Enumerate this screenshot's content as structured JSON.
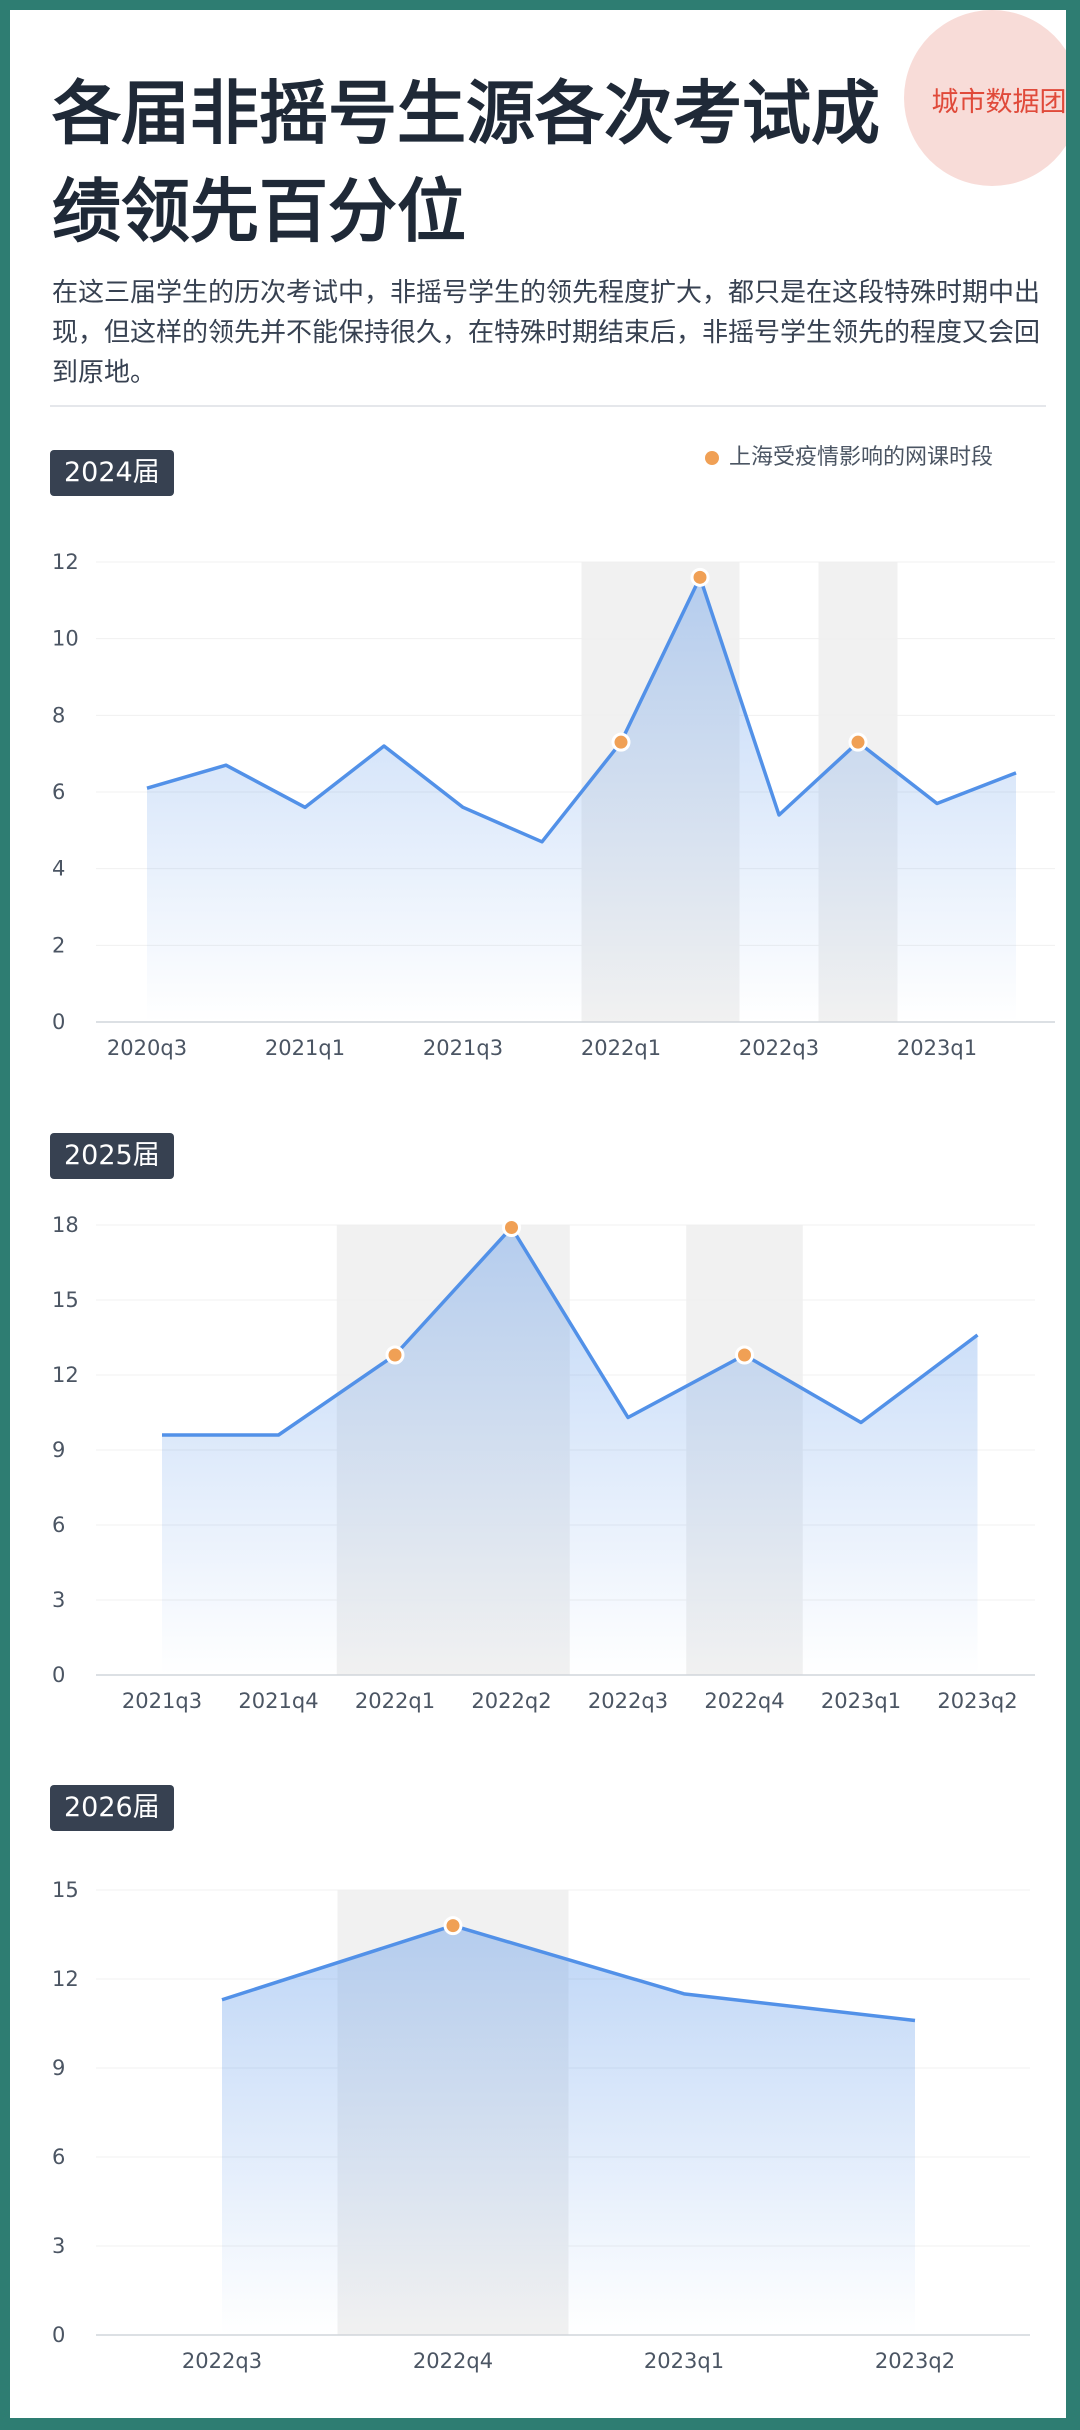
{
  "header": {
    "brand": "城市数据团",
    "title": "各届非摇号生源各次考试成绩领先百分位",
    "description": "在这三届学生的历次考试中，非摇号学生的领先程度扩大，都只是在这段特殊时期中出现，但这样的领先并不能保持很久，在特殊时期结束后，非摇号学生领先的程度又会回到原地。"
  },
  "legend": {
    "label": "上海受疫情影响的网课时段",
    "marker_color": "#f0a055"
  },
  "colors": {
    "line": "#5291e8",
    "highlight_band": "#f1f1f1",
    "marker": "#f0a055"
  },
  "chart_data": [
    {
      "type": "area",
      "cohort": "2024届",
      "x_ticks": [
        "2020q3",
        "2021q1",
        "2021q3",
        "2022q1",
        "2022q3",
        "2023q1"
      ],
      "values": [
        6.1,
        6.7,
        5.6,
        7.2,
        5.6,
        4.7,
        7.3,
        11.6,
        5.4,
        7.3,
        5.7,
        6.5
      ],
      "ylim": [
        0,
        12
      ],
      "y_ticks": [
        0,
        2,
        4,
        6,
        8,
        10,
        12
      ],
      "highlighted_points": [
        6,
        7,
        9
      ],
      "shaded_ranges": [
        [
          6,
          7
        ],
        [
          9,
          9
        ]
      ],
      "grid": true
    },
    {
      "type": "area",
      "cohort": "2025届",
      "x_ticks": [
        "2021q3",
        "2021q4",
        "2022q1",
        "2022q2",
        "2022q3",
        "2022q4",
        "2023q1",
        "2023q2"
      ],
      "values": [
        9.6,
        9.6,
        12.8,
        17.9,
        10.3,
        12.8,
        10.1,
        13.6
      ],
      "ylim": [
        0,
        18
      ],
      "y_ticks": [
        0,
        3,
        6,
        9,
        12,
        15,
        18
      ],
      "highlighted_points": [
        2,
        3,
        5
      ],
      "shaded_ranges": [
        [
          2,
          3
        ],
        [
          5,
          5
        ]
      ],
      "grid": true
    },
    {
      "type": "area",
      "cohort": "2026届",
      "x_ticks": [
        "2022q3",
        "2022q4",
        "2023q1",
        "2023q2"
      ],
      "values": [
        11.3,
        13.8,
        11.5,
        10.6
      ],
      "ylim": [
        0,
        15
      ],
      "y_ticks": [
        0,
        3,
        6,
        9,
        12,
        15
      ],
      "highlighted_points": [
        1
      ],
      "shaded_ranges": [
        [
          1,
          1
        ]
      ],
      "grid": true
    }
  ]
}
